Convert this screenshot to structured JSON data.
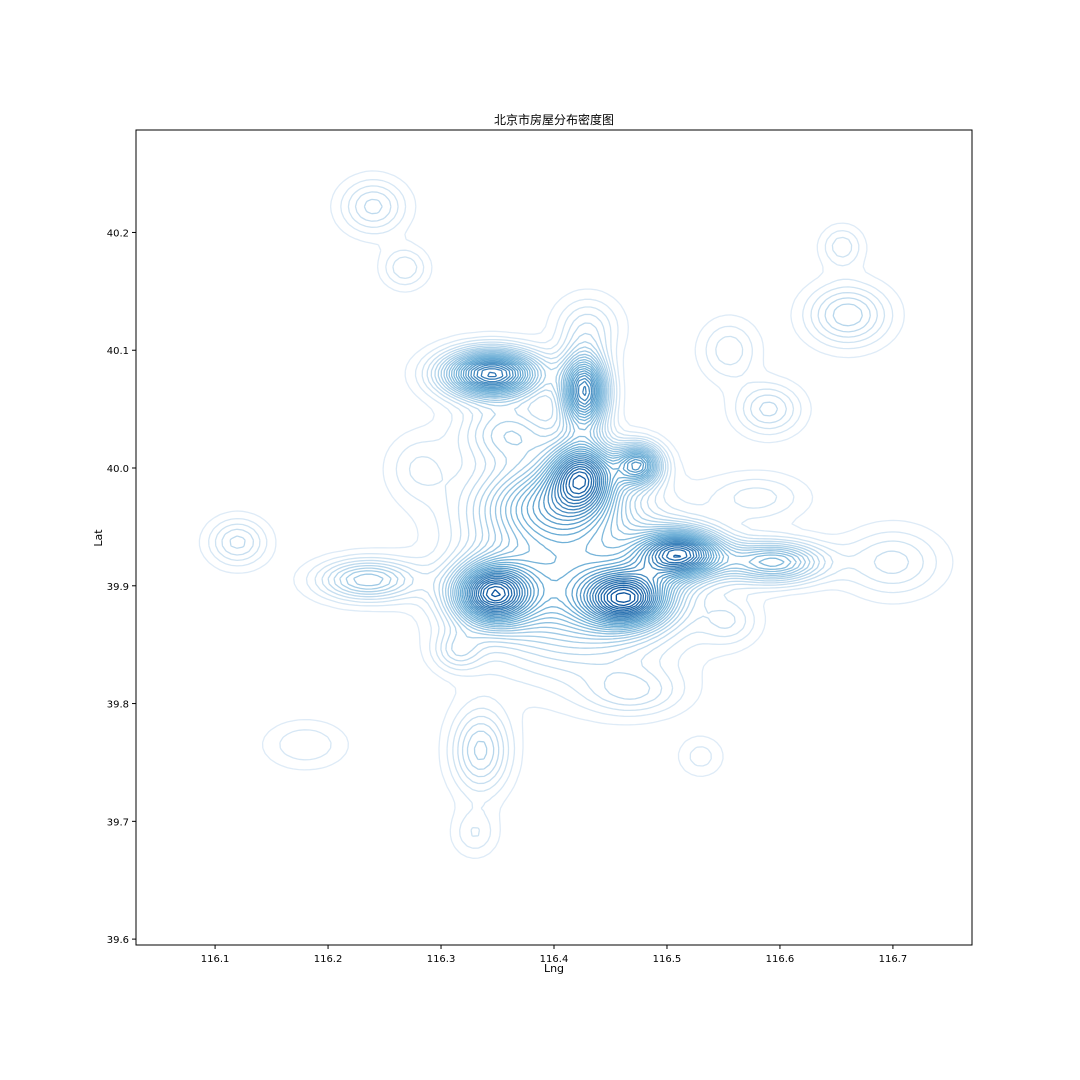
{
  "chart_data": {
    "type": "contour",
    "title": "北京市房屋分布密度图",
    "xlabel": "Lng",
    "ylabel": "Lat",
    "xlim": [
      116.03,
      116.77
    ],
    "ylim": [
      39.595,
      40.287
    ],
    "xticks": [
      "116.1",
      "116.2",
      "116.3",
      "116.4",
      "116.5",
      "116.6",
      "116.7"
    ],
    "xtick_values": [
      116.1,
      116.2,
      116.3,
      116.4,
      116.5,
      116.6,
      116.7
    ],
    "yticks": [
      "39.6",
      "39.7",
      "39.8",
      "39.9",
      "40.0",
      "40.1",
      "40.2"
    ],
    "ytick_values": [
      39.6,
      39.7,
      39.8,
      39.9,
      40.0,
      40.1,
      40.2
    ],
    "grid": false,
    "colormap": "Blues",
    "colors": {
      "light": "#dbe9f6",
      "mid": "#6baed6",
      "dark": "#08519c",
      "axis": "#000000"
    },
    "density_peaks": [
      {
        "lng": 116.345,
        "lat": 40.08,
        "weight": 1.0,
        "sx": 0.03,
        "sy": 0.014
      },
      {
        "lng": 116.427,
        "lat": 40.065,
        "weight": 0.9,
        "sx": 0.014,
        "sy": 0.022
      },
      {
        "lng": 116.425,
        "lat": 39.995,
        "weight": 0.8,
        "sx": 0.02,
        "sy": 0.02
      },
      {
        "lng": 116.475,
        "lat": 40.003,
        "weight": 0.7,
        "sx": 0.014,
        "sy": 0.012
      },
      {
        "lng": 116.395,
        "lat": 39.97,
        "weight": 0.55,
        "sx": 0.045,
        "sy": 0.025
      },
      {
        "lng": 116.512,
        "lat": 39.927,
        "weight": 0.95,
        "sx": 0.026,
        "sy": 0.014
      },
      {
        "lng": 116.345,
        "lat": 39.893,
        "weight": 0.95,
        "sx": 0.024,
        "sy": 0.018
      },
      {
        "lng": 116.465,
        "lat": 39.889,
        "weight": 0.85,
        "sx": 0.026,
        "sy": 0.016
      },
      {
        "lng": 116.42,
        "lat": 39.9,
        "weight": 0.55,
        "sx": 0.06,
        "sy": 0.045
      },
      {
        "lng": 116.595,
        "lat": 39.92,
        "weight": 0.55,
        "sx": 0.03,
        "sy": 0.012
      },
      {
        "lng": 116.235,
        "lat": 39.905,
        "weight": 0.4,
        "sx": 0.03,
        "sy": 0.012
      },
      {
        "lng": 116.12,
        "lat": 39.937,
        "weight": 0.22,
        "sx": 0.018,
        "sy": 0.014
      },
      {
        "lng": 116.24,
        "lat": 40.222,
        "weight": 0.22,
        "sx": 0.02,
        "sy": 0.016
      },
      {
        "lng": 116.268,
        "lat": 40.17,
        "weight": 0.16,
        "sx": 0.014,
        "sy": 0.012
      },
      {
        "lng": 116.66,
        "lat": 40.13,
        "weight": 0.28,
        "sx": 0.025,
        "sy": 0.018
      },
      {
        "lng": 116.655,
        "lat": 40.188,
        "weight": 0.15,
        "sx": 0.013,
        "sy": 0.012
      },
      {
        "lng": 116.59,
        "lat": 40.05,
        "weight": 0.22,
        "sx": 0.02,
        "sy": 0.015
      },
      {
        "lng": 116.555,
        "lat": 40.1,
        "weight": 0.15,
        "sx": 0.018,
        "sy": 0.018
      },
      {
        "lng": 116.7,
        "lat": 39.92,
        "weight": 0.18,
        "sx": 0.03,
        "sy": 0.02
      },
      {
        "lng": 116.335,
        "lat": 39.76,
        "weight": 0.3,
        "sx": 0.018,
        "sy": 0.025
      },
      {
        "lng": 116.18,
        "lat": 39.765,
        "weight": 0.12,
        "sx": 0.025,
        "sy": 0.014
      },
      {
        "lng": 116.315,
        "lat": 39.845,
        "weight": 0.2,
        "sx": 0.015,
        "sy": 0.012
      },
      {
        "lng": 116.53,
        "lat": 39.755,
        "weight": 0.1,
        "sx": 0.014,
        "sy": 0.012
      },
      {
        "lng": 116.33,
        "lat": 39.69,
        "weight": 0.12,
        "sx": 0.014,
        "sy": 0.014
      },
      {
        "lng": 116.47,
        "lat": 39.81,
        "weight": 0.18,
        "sx": 0.03,
        "sy": 0.014
      },
      {
        "lng": 116.43,
        "lat": 40.12,
        "weight": 0.18,
        "sx": 0.02,
        "sy": 0.018
      },
      {
        "lng": 116.555,
        "lat": 39.87,
        "weight": 0.14,
        "sx": 0.018,
        "sy": 0.014
      },
      {
        "lng": 116.36,
        "lat": 40.03,
        "weight": 0.3,
        "sx": 0.03,
        "sy": 0.018
      },
      {
        "lng": 116.28,
        "lat": 40.0,
        "weight": 0.12,
        "sx": 0.02,
        "sy": 0.02
      },
      {
        "lng": 116.58,
        "lat": 39.975,
        "weight": 0.14,
        "sx": 0.03,
        "sy": 0.014
      }
    ]
  }
}
